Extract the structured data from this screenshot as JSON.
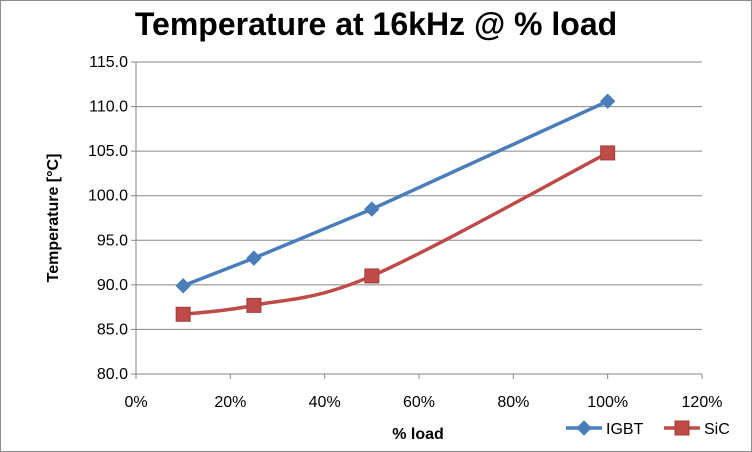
{
  "chart_data": {
    "type": "line",
    "title": "Temperature at 16kHz @ % load",
    "xlabel": "% load",
    "ylabel": "Temperature [°C]",
    "xlim": [
      0,
      120
    ],
    "ylim": [
      80,
      115
    ],
    "x_ticks": [
      "0%",
      "20%",
      "40%",
      "60%",
      "80%",
      "100%",
      "120%"
    ],
    "y_ticks": [
      "80.0",
      "85.0",
      "90.0",
      "95.0",
      "100.0",
      "105.0",
      "110.0",
      "115.0"
    ],
    "grid": "horizontal",
    "legend_position": "bottom-right",
    "series": [
      {
        "name": "IGBT",
        "color": "#4a7ebb",
        "marker": "diamond",
        "smooth": false,
        "x": [
          10,
          25,
          50,
          100
        ],
        "y": [
          89.9,
          93.0,
          98.5,
          110.6
        ]
      },
      {
        "name": "SiC",
        "color": "#be4b48",
        "marker": "square",
        "smooth": true,
        "x": [
          10,
          25,
          50,
          100
        ],
        "y": [
          86.7,
          87.7,
          91.0,
          104.8
        ]
      }
    ]
  }
}
